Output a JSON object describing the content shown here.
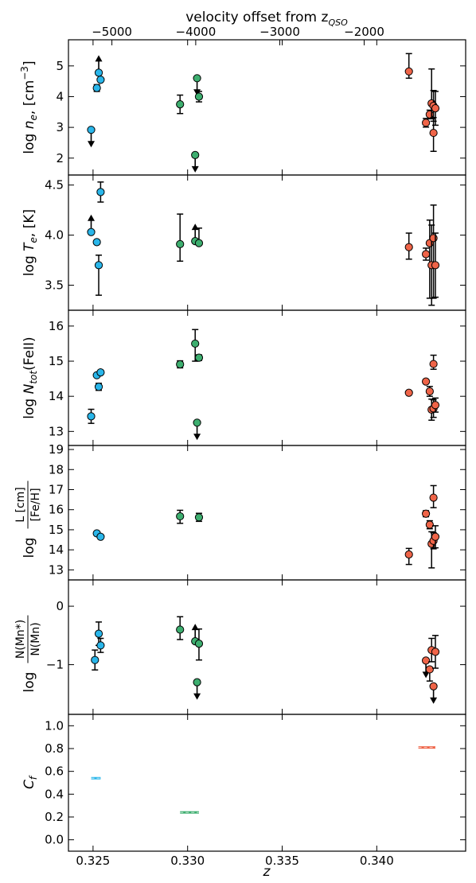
{
  "figure": {
    "top_axis_label": "velocity offset from z",
    "top_axis_label_sub": "QSO",
    "top_axis_ticks": [
      "−5000",
      "−4000",
      "−3000",
      "−2000"
    ],
    "top_axis_tick_values": [
      -5000,
      -4000,
      -3000,
      -2000
    ],
    "x_label": "z",
    "x_ticks": [
      "0.325",
      "0.330",
      "0.335",
      "0.340"
    ],
    "x_tick_values": [
      0.325,
      0.33,
      0.335,
      0.34
    ],
    "xlim": [
      0.3237,
      0.3447
    ]
  },
  "colors": {
    "blue": "#29b6ea",
    "green": "#3dae6f",
    "red": "#ef6448"
  },
  "chart_data": [
    {
      "type": "scatter",
      "panel": "ne",
      "ylabel_main": "log",
      "ylabel_sym": "n",
      "ylabel_sub": "e",
      "ylabel_unit": ", [cm",
      "ylabel_sup": "−3",
      "ylabel_close": "]",
      "ylim": [
        1.45,
        5.85
      ],
      "yticks": [
        2,
        3,
        4,
        5
      ],
      "ytick_labels": [
        "2",
        "3",
        "4",
        "5"
      ],
      "series": [
        {
          "color": "blue",
          "points": [
            {
              "x": 0.3249,
              "y": 2.92,
              "err": [
                0,
                0
              ],
              "limit": "upper"
            },
            {
              "x": 0.3252,
              "y": 4.28,
              "err": [
                0.11,
                0.11
              ]
            },
            {
              "x": 0.3253,
              "y": 4.78,
              "err": [
                0,
                0
              ],
              "limit": "lower"
            },
            {
              "x": 0.3254,
              "y": 4.55,
              "err": [
                0,
                0
              ]
            }
          ]
        },
        {
          "color": "green",
          "points": [
            {
              "x": 0.3296,
              "y": 3.75,
              "err": [
                0.3,
                0.3
              ]
            },
            {
              "x": 0.3304,
              "y": 2.1,
              "err": [
                0,
                0
              ],
              "limit": "upper"
            },
            {
              "x": 0.3305,
              "y": 4.6,
              "err": [
                0,
                0
              ],
              "limit": "upper"
            },
            {
              "x": 0.3306,
              "y": 4.0,
              "err": [
                0.17,
                0.17
              ]
            }
          ]
        },
        {
          "color": "red",
          "points": [
            {
              "x": 0.3417,
              "y": 4.82,
              "err": [
                0.22,
                0.58
              ]
            },
            {
              "x": 0.3426,
              "y": 3.15,
              "err": [
                0.14,
                0.14
              ]
            },
            {
              "x": 0.3428,
              "y": 3.42,
              "err": [
                0.14,
                0.14
              ]
            },
            {
              "x": 0.3429,
              "y": 3.78,
              "err": [
                0.5,
                1.12
              ]
            },
            {
              "x": 0.343,
              "y": 3.7,
              "err": [
                0.5,
                0.5
              ]
            },
            {
              "x": 0.343,
              "y": 2.82,
              "err": [
                0.6,
                0.5
              ]
            },
            {
              "x": 0.3431,
              "y": 3.62,
              "err": [
                0.55,
                0.55
              ]
            }
          ]
        }
      ]
    },
    {
      "type": "scatter",
      "panel": "te",
      "ylabel_main": "log",
      "ylabel_sym": "T",
      "ylabel_sub": "e",
      "ylabel_unit": ", [K]",
      "ylim": [
        3.25,
        4.6
      ],
      "yticks": [
        3.5,
        4.0,
        4.5
      ],
      "ytick_labels": [
        "3.5",
        "4.0",
        "4.5"
      ],
      "series": [
        {
          "color": "blue",
          "points": [
            {
              "x": 0.3249,
              "y": 4.03,
              "err": [
                0,
                0
              ],
              "limit": "lower"
            },
            {
              "x": 0.3252,
              "y": 3.93,
              "err": [
                0,
                0
              ]
            },
            {
              "x": 0.3253,
              "y": 3.7,
              "err": [
                0.3,
                0.1
              ]
            },
            {
              "x": 0.3254,
              "y": 4.43,
              "err": [
                0.1,
                0.1
              ]
            }
          ]
        },
        {
          "color": "green",
          "points": [
            {
              "x": 0.3296,
              "y": 3.91,
              "err": [
                0.17,
                0.3
              ]
            },
            {
              "x": 0.3304,
              "y": 3.94,
              "err": [
                0,
                0
              ],
              "limit": "lower"
            },
            {
              "x": 0.3306,
              "y": 3.92,
              "err": [
                0,
                0.15
              ]
            }
          ]
        },
        {
          "color": "red",
          "points": [
            {
              "x": 0.3417,
              "y": 3.88,
              "err": [
                0.12,
                0.14
              ]
            },
            {
              "x": 0.3426,
              "y": 3.81,
              "err": [
                0.06,
                0.06
              ]
            },
            {
              "x": 0.3428,
              "y": 3.92,
              "err": [
                0.55,
                0.23
              ]
            },
            {
              "x": 0.3429,
              "y": 3.7,
              "err": [
                0.4,
                0.4
              ]
            },
            {
              "x": 0.343,
              "y": 3.97,
              "err": [
                0.6,
                0.33
              ]
            },
            {
              "x": 0.3431,
              "y": 3.7,
              "err": [
                0.32,
                0.32
              ]
            }
          ]
        }
      ]
    },
    {
      "type": "scatter",
      "panel": "ntot",
      "ylabel_main": "log",
      "ylabel_sym": "N",
      "ylabel_sub": "tot",
      "ylabel_unit": "(FeII)",
      "ylim": [
        12.6,
        16.45
      ],
      "yticks": [
        13,
        14,
        15,
        16
      ],
      "ytick_labels": [
        "13",
        "14",
        "15",
        "16"
      ],
      "series": [
        {
          "color": "blue",
          "points": [
            {
              "x": 0.3249,
              "y": 13.43,
              "err": [
                0.2,
                0.2
              ]
            },
            {
              "x": 0.3252,
              "y": 14.6,
              "err": [
                0,
                0
              ]
            },
            {
              "x": 0.3253,
              "y": 14.27,
              "err": [
                0.1,
                0.1
              ]
            },
            {
              "x": 0.3254,
              "y": 14.68,
              "err": [
                0,
                0
              ]
            }
          ]
        },
        {
          "color": "green",
          "points": [
            {
              "x": 0.3296,
              "y": 14.91,
              "err": [
                0.1,
                0.1
              ]
            },
            {
              "x": 0.3304,
              "y": 15.5,
              "err": [
                0.5,
                0.4
              ]
            },
            {
              "x": 0.3305,
              "y": 13.25,
              "err": [
                0,
                0
              ],
              "limit": "upper"
            },
            {
              "x": 0.3306,
              "y": 15.1,
              "err": [
                0.08,
                0.08
              ]
            }
          ]
        },
        {
          "color": "red",
          "points": [
            {
              "x": 0.3417,
              "y": 14.1,
              "err": [
                0,
                0
              ]
            },
            {
              "x": 0.3426,
              "y": 14.42,
              "err": [
                0.05,
                0.05
              ]
            },
            {
              "x": 0.3428,
              "y": 14.14,
              "err": [
                0.14,
                0.14
              ]
            },
            {
              "x": 0.3429,
              "y": 13.62,
              "err": [
                0.3,
                0.3
              ]
            },
            {
              "x": 0.343,
              "y": 13.65,
              "err": [
                0.25,
                0.25
              ]
            },
            {
              "x": 0.343,
              "y": 14.92,
              "err": [
                0.15,
                0.25
              ]
            },
            {
              "x": 0.3431,
              "y": 13.75,
              "err": [
                0.2,
                0.2
              ]
            }
          ]
        }
      ]
    },
    {
      "type": "scatter",
      "panel": "l",
      "ylabel_main": "log",
      "ylabel_num": "L [cm]",
      "ylabel_den": "[Fe/H]",
      "ylim": [
        12.5,
        19.2
      ],
      "yticks": [
        13,
        14,
        15,
        16,
        17,
        18,
        19
      ],
      "ytick_labels": [
        "13",
        "14",
        "15",
        "16",
        "17",
        "18",
        "19"
      ],
      "series": [
        {
          "color": "blue",
          "points": [
            {
              "x": 0.3252,
              "y": 14.82,
              "err": [
                0,
                0
              ]
            },
            {
              "x": 0.3254,
              "y": 14.65,
              "err": [
                0,
                0
              ]
            }
          ]
        },
        {
          "color": "green",
          "points": [
            {
              "x": 0.3296,
              "y": 15.67,
              "err": [
                0.35,
                0.3
              ]
            },
            {
              "x": 0.3306,
              "y": 15.62,
              "err": [
                0.2,
                0.2
              ]
            }
          ]
        },
        {
          "color": "red",
          "points": [
            {
              "x": 0.3417,
              "y": 13.77,
              "err": [
                0.5,
                0.3
              ]
            },
            {
              "x": 0.3426,
              "y": 15.8,
              "err": [
                0.15,
                0.15
              ]
            },
            {
              "x": 0.3428,
              "y": 15.25,
              "err": [
                0.2,
                0.2
              ]
            },
            {
              "x": 0.3429,
              "y": 14.3,
              "err": [
                1.2,
                0.6
              ]
            },
            {
              "x": 0.343,
              "y": 14.45,
              "err": [
                0.4,
                0.4
              ]
            },
            {
              "x": 0.343,
              "y": 16.6,
              "err": [
                0.5,
                0.6
              ]
            },
            {
              "x": 0.3431,
              "y": 14.65,
              "err": [
                0.55,
                0.55
              ]
            }
          ]
        }
      ]
    },
    {
      "type": "scatter",
      "panel": "mn",
      "ylabel_main": "log",
      "ylabel_num": "N(Mn*)",
      "ylabel_den": "N(Mn)",
      "ylim": [
        -1.85,
        0.45
      ],
      "yticks": [
        -1,
        0
      ],
      "ytick_labels": [
        "−1",
        "0"
      ],
      "series": [
        {
          "color": "blue",
          "points": [
            {
              "x": 0.3251,
              "y": -0.92,
              "err": [
                0.17,
                0.17
              ]
            },
            {
              "x": 0.3253,
              "y": -0.47,
              "err": [
                0.2,
                0.2
              ]
            },
            {
              "x": 0.3254,
              "y": -0.67,
              "err": [
                0.12,
                0.12
              ]
            }
          ]
        },
        {
          "color": "green",
          "points": [
            {
              "x": 0.3296,
              "y": -0.4,
              "err": [
                0.17,
                0.22
              ]
            },
            {
              "x": 0.3304,
              "y": -0.6,
              "err": [
                0,
                0
              ],
              "limit": "lower"
            },
            {
              "x": 0.3305,
              "y": -1.3,
              "err": [
                0,
                0
              ],
              "limit": "upper"
            },
            {
              "x": 0.3306,
              "y": -0.64,
              "err": [
                0.28,
                0.25
              ]
            }
          ]
        },
        {
          "color": "red",
          "points": [
            {
              "x": 0.3426,
              "y": -0.93,
              "err": [
                0,
                0
              ],
              "limit": "upper"
            },
            {
              "x": 0.3428,
              "y": -1.08,
              "err": [
                0.2,
                0
              ]
            },
            {
              "x": 0.3429,
              "y": -0.75,
              "err": [
                0.2,
                0.2
              ]
            },
            {
              "x": 0.343,
              "y": -1.37,
              "err": [
                0,
                0
              ],
              "limit": "upper"
            },
            {
              "x": 0.3431,
              "y": -0.78,
              "err": [
                0.28,
                0.28
              ]
            }
          ]
        }
      ]
    },
    {
      "type": "scatter",
      "panel": "cf",
      "ylabel_sym": "C",
      "ylabel_sub": "f",
      "ylim": [
        -0.1,
        1.1
      ],
      "yticks": [
        0.0,
        0.2,
        0.4,
        0.6,
        0.8,
        1.0
      ],
      "ytick_labels": [
        "0.0",
        "0.2",
        "0.4",
        "0.6",
        "0.8",
        "1.0"
      ],
      "segments": [
        {
          "color": "blue",
          "x0": 0.3249,
          "x1": 0.3254,
          "y": 0.54
        },
        {
          "color": "green",
          "x0": 0.3296,
          "x1": 0.3306,
          "y": 0.24
        },
        {
          "color": "red",
          "x0": 0.3422,
          "x1": 0.3431,
          "y": 0.81
        }
      ]
    }
  ]
}
